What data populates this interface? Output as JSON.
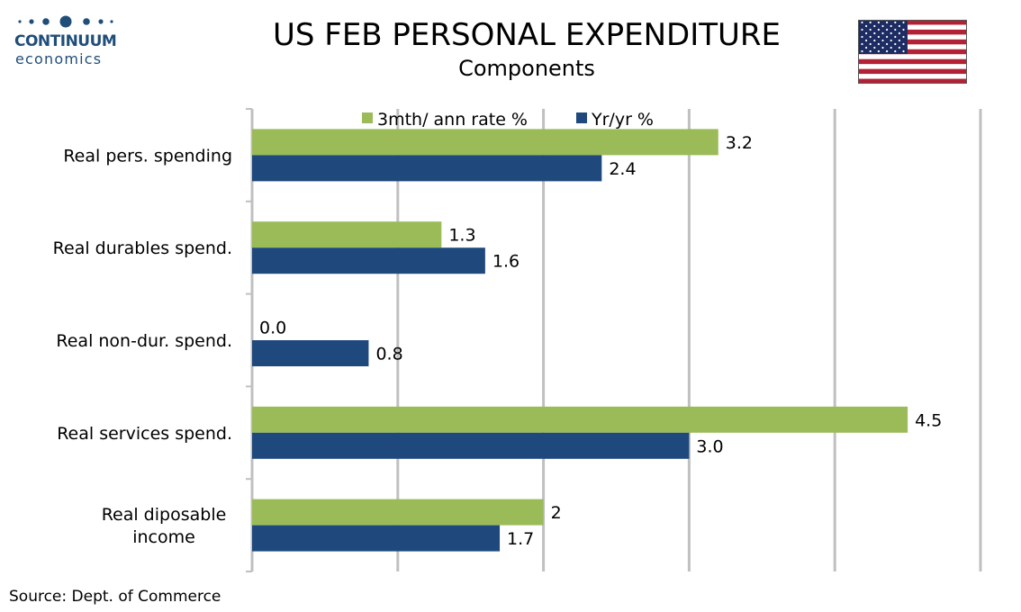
{
  "header": {
    "brand_name": "CONTINUUM",
    "brand_sub": "economics",
    "title": "US FEB PERSONAL EXPENDITURE",
    "subtitle": "Components"
  },
  "footer": {
    "source": "Source: Dept. of Commerce"
  },
  "colors": {
    "series_3m": "#9bbb59",
    "series_yy": "#1f497d",
    "grid": "#c0c0c0",
    "brand": "#1f4e79"
  },
  "chart_data": {
    "type": "bar",
    "orientation": "horizontal",
    "categories": [
      [
        "Real pers. spending"
      ],
      [
        "Real durables spend."
      ],
      [
        "Real non-dur. spend."
      ],
      [
        "Real services spend."
      ],
      [
        "Real diposable",
        "income"
      ]
    ],
    "series": [
      {
        "name": "3mth/ ann rate %",
        "values": [
          3.2,
          1.3,
          0.0,
          4.5,
          2
        ],
        "labels": [
          "3.2",
          "1.3",
          "0.0",
          "4.5",
          "2"
        ],
        "color": "#9bbb59"
      },
      {
        "name": "Yr/yr %",
        "values": [
          2.4,
          1.6,
          0.8,
          3.0,
          1.7
        ],
        "labels": [
          "2.4",
          "1.6",
          "0.8",
          "3.0",
          "1.7"
        ],
        "color": "#1f497d"
      }
    ],
    "xlim": [
      0,
      5
    ],
    "grid": true,
    "legend": "top"
  }
}
